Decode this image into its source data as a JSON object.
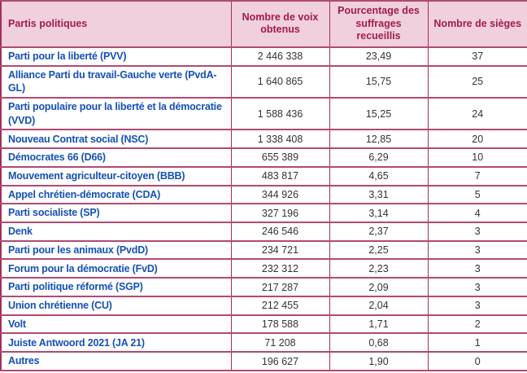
{
  "chart_data": {
    "type": "table",
    "columns": [
      "Partis politiques",
      "Nombre de voix obtenus",
      "Pourcentage des suffrages recueillis",
      "Nombre de sièges"
    ],
    "rows": [
      [
        "Parti pour la liberté (PVV)",
        "2 446 338",
        "23,49",
        "37"
      ],
      [
        "Alliance Parti du travail-Gauche verte (PvdA-GL)",
        "1 640 865",
        "15,75",
        "25"
      ],
      [
        "Parti populaire pour la liberté et la démocratie (VVD)",
        "1 588 436",
        "15,25",
        "24"
      ],
      [
        "Nouveau Contrat social (NSC)",
        "1 338 408",
        "12,85",
        "20"
      ],
      [
        "Démocrates 66 (D66)",
        "655 389",
        "6,29",
        "10"
      ],
      [
        "Mouvement agriculteur-citoyen (BBB)",
        "483 817",
        "4,65",
        "7"
      ],
      [
        "Appel chrétien-démocrate (CDA)",
        "344 926",
        "3,31",
        "5"
      ],
      [
        "Parti socialiste (SP)",
        "327 196",
        "3,14",
        "4"
      ],
      [
        "Denk",
        "246 546",
        "2,37",
        "3"
      ],
      [
        "Parti pour les animaux (PvdD)",
        "234 721",
        "2,25",
        "3"
      ],
      [
        "Forum pour la démocratie (FvD)",
        "232 312",
        "2,23",
        "3"
      ],
      [
        "Parti politique réformé (SGP)",
        "217 287",
        "2,09",
        "3"
      ],
      [
        "Union chrétienne (CU)",
        "212 455",
        "2,04",
        "3"
      ],
      [
        "Volt",
        "178 588",
        "1,71",
        "2"
      ],
      [
        "Juiste Antwoord 2021 (JA 21)",
        "71 208",
        "0,68",
        "1"
      ],
      [
        "Autres",
        "196 627",
        "1,90",
        "0"
      ]
    ]
  },
  "colors": {
    "header_bg": "#f0d0dc",
    "header_text": "#a21a52",
    "party_text": "#1450be",
    "number_text": "#333333",
    "border_vertical": "#a82c58",
    "border_horizontal": "#b04a73",
    "row_bg": "#ffffff"
  }
}
